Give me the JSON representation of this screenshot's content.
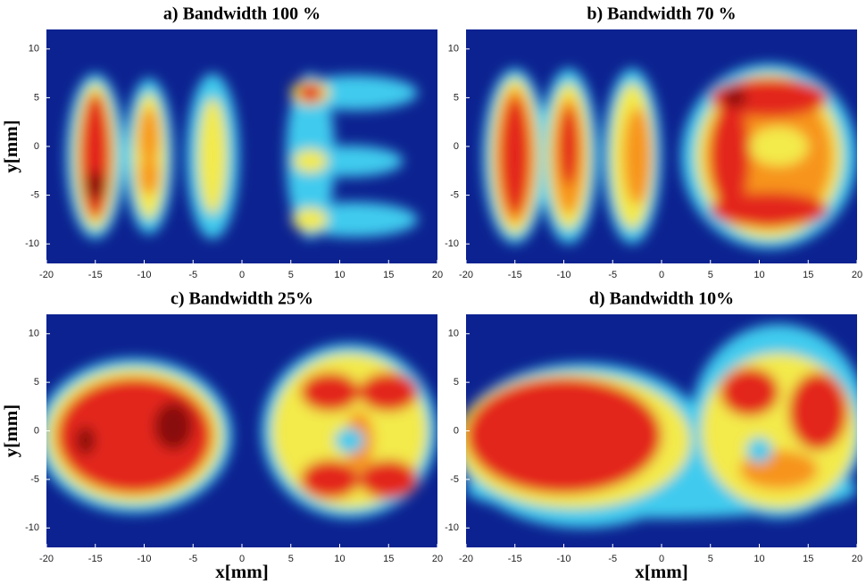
{
  "chart_data": [
    {
      "type": "heatmap",
      "title": "a) Bandwidth 100 %",
      "ylabel": "y[mm]",
      "xlim": [
        -20,
        20
      ],
      "xticks": [
        -20,
        -15,
        -10,
        -5,
        0,
        5,
        10,
        15,
        20
      ],
      "ylim": [
        -12,
        12
      ],
      "yticks": [
        -10,
        -5,
        0,
        5,
        10
      ]
    },
    {
      "type": "heatmap",
      "title": "b) Bandwidth 70 %",
      "xlim": [
        -20,
        20
      ],
      "xticks": [
        -20,
        -15,
        -10,
        -5,
        0,
        5,
        10,
        15,
        20
      ],
      "ylim": [
        -12,
        12
      ],
      "yticks": [
        -10,
        -5,
        0,
        5,
        10
      ]
    },
    {
      "type": "heatmap",
      "title": "c) Bandwidth 25%",
      "xlabel": "x[mm]",
      "ylabel": "y[mm]",
      "xlim": [
        -20,
        20
      ],
      "xticks": [
        -20,
        -15,
        -10,
        -5,
        0,
        5,
        10,
        15,
        20
      ],
      "ylim": [
        -12,
        12
      ],
      "yticks": [
        -10,
        -5,
        0,
        5,
        10
      ]
    },
    {
      "type": "heatmap",
      "title": "d) Bandwidth 10%",
      "xlabel": "x[mm]",
      "xlim": [
        -20,
        20
      ],
      "xticks": [
        -20,
        -15,
        -10,
        -5,
        0,
        5,
        10,
        15,
        20
      ],
      "ylim": [
        -12,
        12
      ],
      "yticks": [
        -10,
        -5,
        0,
        5,
        10
      ]
    }
  ]
}
